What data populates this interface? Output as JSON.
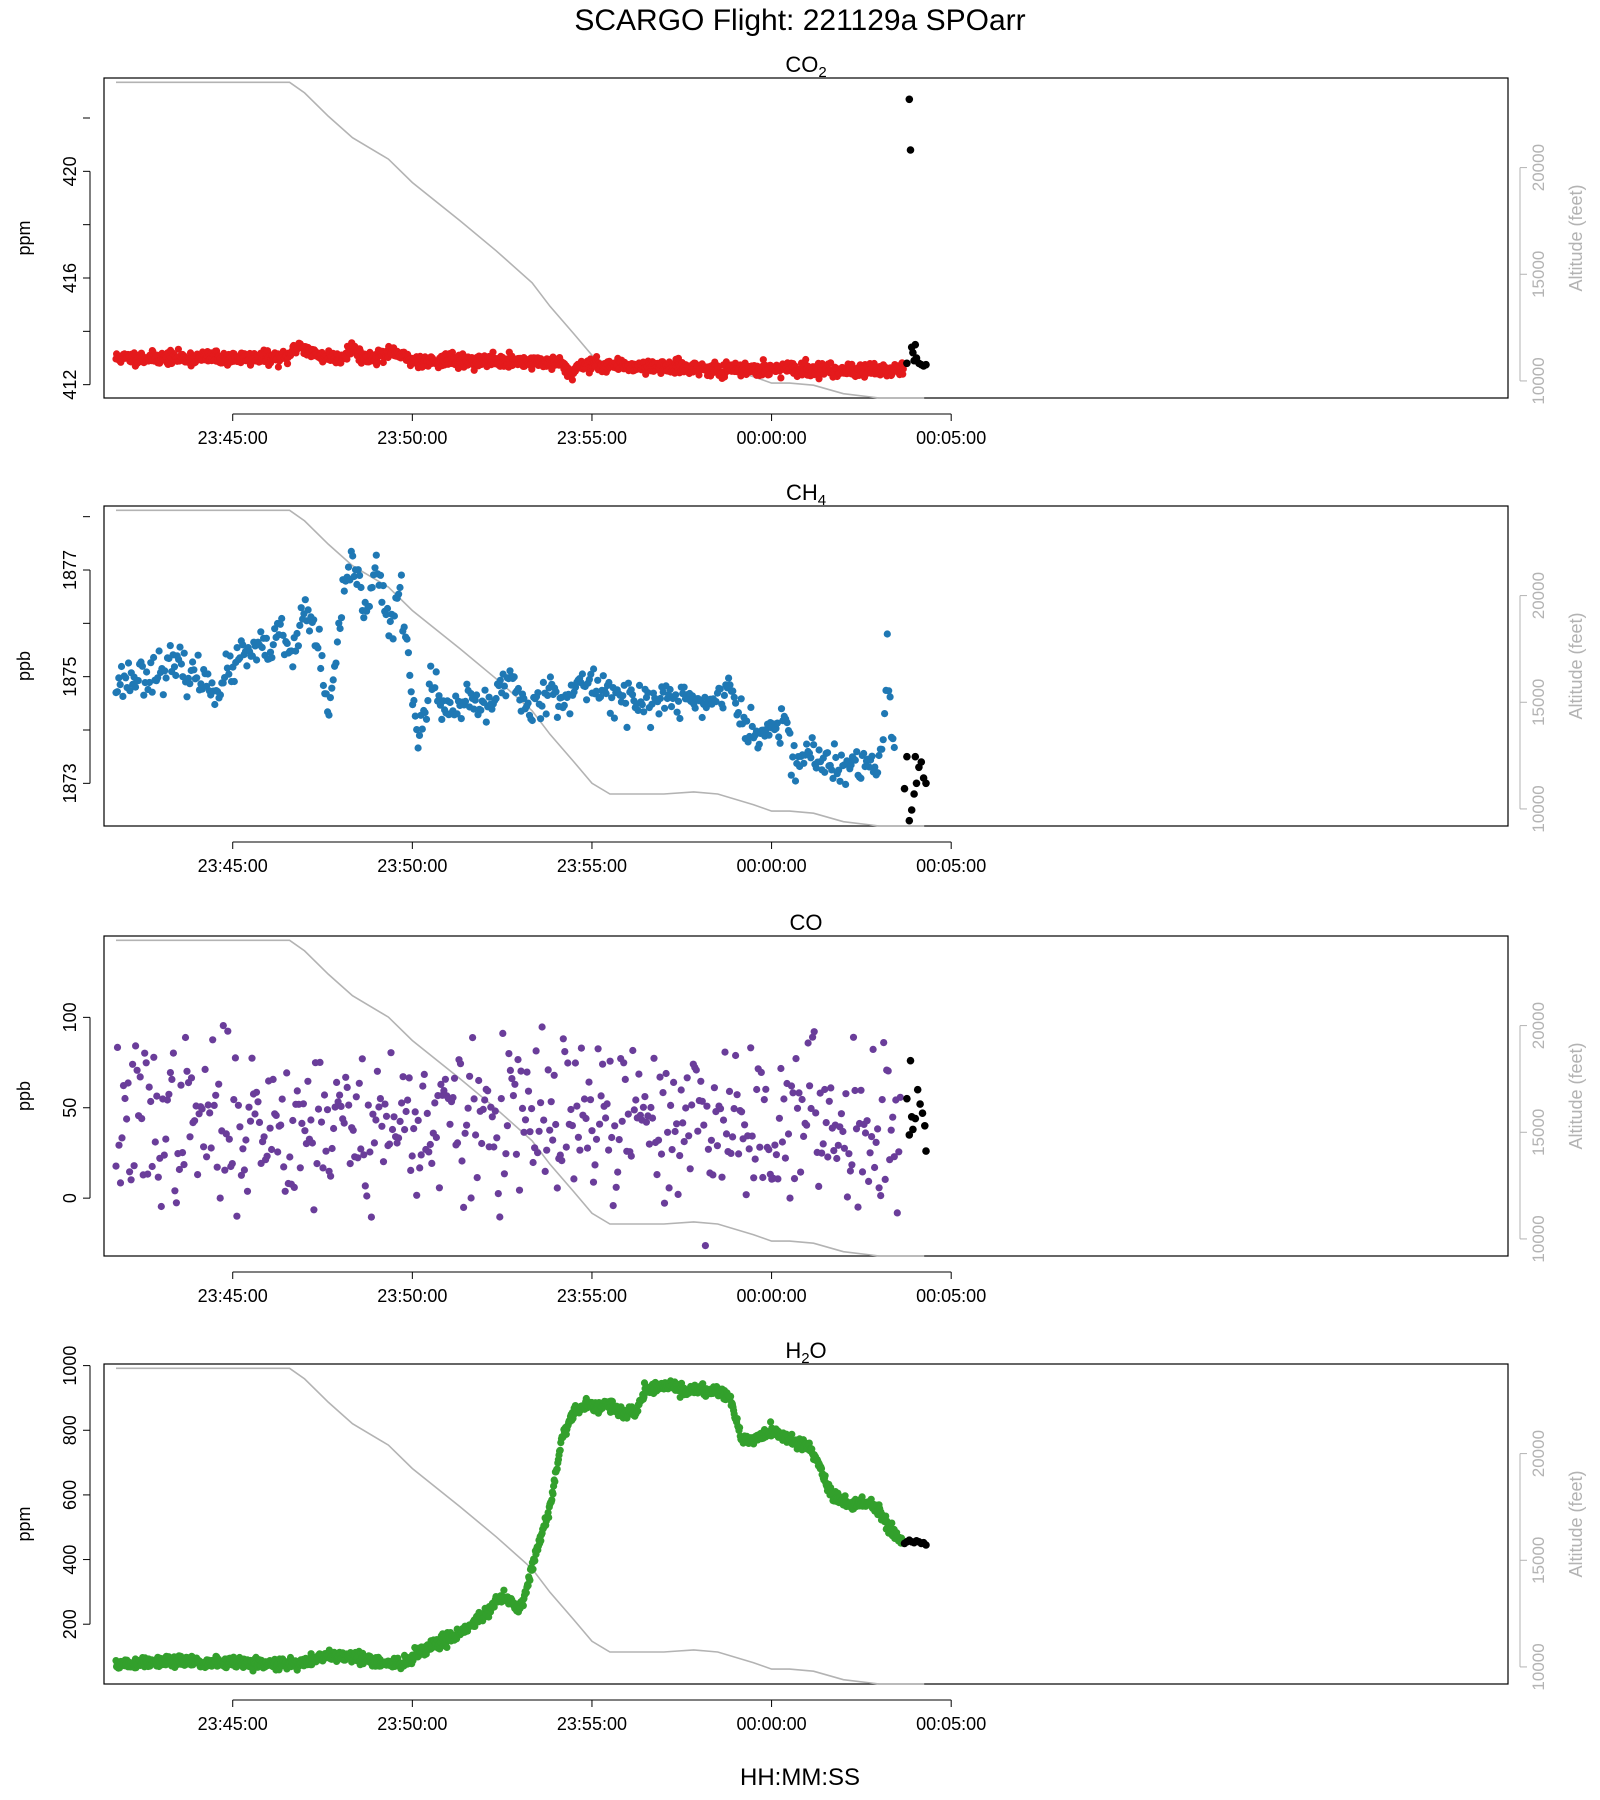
{
  "title": "SCARGO Flight: 221129a  SPOarr",
  "x_axis_title": "HH:MM:SS",
  "right_axis_label": "Altitude (feet)",
  "colors": {
    "co2": "#e41a1c",
    "ch4": "#1f78b4",
    "co": "#6a3d9a",
    "h2o": "#33a02c",
    "final_points": "#000000",
    "altitude": "#b3b3b3"
  },
  "chart_data": {
    "type": "scatter",
    "time_range_seconds": [
      -1115,
      1230
    ],
    "x_ticks": [
      {
        "label": "23:45:00",
        "t": -900
      },
      {
        "label": "23:50:00",
        "t": -600
      },
      {
        "label": "23:55:00",
        "t": -300
      },
      {
        "label": "00:00:00",
        "t": 0
      },
      {
        "label": "00:05:00",
        "t": 300
      }
    ],
    "altitude_profile": {
      "name": "Altitude (feet)",
      "t_start": -1095,
      "t_end": 255,
      "points": [
        [
          -1095,
          24000
        ],
        [
          -1000,
          24000
        ],
        [
          -805,
          24000
        ],
        [
          -780,
          23500
        ],
        [
          -740,
          22400
        ],
        [
          -700,
          21400
        ],
        [
          -640,
          20400
        ],
        [
          -600,
          19300
        ],
        [
          -520,
          17500
        ],
        [
          -460,
          16100
        ],
        [
          -400,
          14600
        ],
        [
          -370,
          13500
        ],
        [
          -330,
          12200
        ],
        [
          -300,
          11200
        ],
        [
          -270,
          10700
        ],
        [
          -180,
          10700
        ],
        [
          -130,
          10800
        ],
        [
          -90,
          10700
        ],
        [
          -30,
          10200
        ],
        [
          0,
          9900
        ],
        [
          30,
          9900
        ],
        [
          70,
          9800
        ],
        [
          120,
          9400
        ],
        [
          180,
          9200
        ],
        [
          255,
          9200
        ]
      ]
    },
    "plots": [
      {
        "name": "CO2",
        "title": "CO",
        "title_subscript": "2",
        "ylabel": "ppm",
        "ylim": [
          411.5,
          423.5
        ],
        "yticks": [
          412,
          416,
          420
        ],
        "yticks_minor": [
          414,
          418,
          422
        ],
        "y2lim": [
          9200,
          24200
        ],
        "y2ticks": [
          10000,
          15000,
          20000
        ],
        "series_color": "co2",
        "series": {
          "t_start": -1095,
          "t_end": 220,
          "knots": [
            [
              -1095,
              413.0
            ],
            [
              -900,
              413.0
            ],
            [
              -810,
              413.0
            ],
            [
              -790,
              413.5
            ],
            [
              -760,
              413.1
            ],
            [
              -720,
              413.0
            ],
            [
              -700,
              413.4
            ],
            [
              -680,
              413.0
            ],
            [
              -650,
              413.1
            ],
            [
              -630,
              413.2
            ],
            [
              -600,
              412.9
            ],
            [
              -500,
              412.9
            ],
            [
              -400,
              412.85
            ],
            [
              -350,
              412.8
            ],
            [
              -335,
              412.4
            ],
            [
              -320,
              412.75
            ],
            [
              -200,
              412.7
            ],
            [
              -100,
              412.6
            ],
            [
              -80,
              412.45
            ],
            [
              -60,
              412.6
            ],
            [
              0,
              412.6
            ],
            [
              100,
              412.55
            ],
            [
              220,
              412.55
            ]
          ],
          "noise": 0.12,
          "count": 1300,
          "seed": 11
        },
        "final_points": [
          [
            226,
            412.8
          ],
          [
            230,
            422.7
          ],
          [
            232,
            420.8
          ],
          [
            234,
            413.4
          ],
          [
            236,
            413.2
          ],
          [
            238,
            412.9
          ],
          [
            240,
            413.5
          ],
          [
            242,
            413.0
          ],
          [
            246,
            412.8
          ],
          [
            250,
            412.75
          ],
          [
            254,
            412.7
          ],
          [
            258,
            412.75
          ]
        ]
      },
      {
        "name": "CH4",
        "title": "CH",
        "title_subscript": "4",
        "ylabel": "ppb",
        "ylim": [
          1872.2,
          1878.2
        ],
        "yticks": [
          1873,
          1875,
          1877
        ],
        "yticks_minor": [
          1874,
          1876,
          1878
        ],
        "y2lim": [
          9200,
          24200
        ],
        "y2ticks": [
          10000,
          15000,
          20000
        ],
        "series_color": "ch4",
        "series": {
          "t_start": -1095,
          "t_end": 205,
          "knots": [
            [
              -1095,
              1874.9
            ],
            [
              -1000,
              1875.2
            ],
            [
              -920,
              1874.8
            ],
            [
              -900,
              1875.2
            ],
            [
              -880,
              1875.4
            ],
            [
              -840,
              1875.5
            ],
            [
              -820,
              1875.8
            ],
            [
              -800,
              1875.3
            ],
            [
              -780,
              1876.3
            ],
            [
              -760,
              1875.8
            ],
            [
              -740,
              1874.2
            ],
            [
              -720,
              1876.0
            ],
            [
              -700,
              1877.3
            ],
            [
              -680,
              1876.2
            ],
            [
              -660,
              1877.2
            ],
            [
              -640,
              1875.8
            ],
            [
              -620,
              1876.6
            ],
            [
              -600,
              1874.8
            ],
            [
              -590,
              1873.6
            ],
            [
              -570,
              1875.0
            ],
            [
              -550,
              1874.3
            ],
            [
              -500,
              1874.5
            ],
            [
              -470,
              1874.4
            ],
            [
              -440,
              1875.1
            ],
            [
              -420,
              1874.6
            ],
            [
              -400,
              1874.3
            ],
            [
              -380,
              1874.8
            ],
            [
              -340,
              1874.6
            ],
            [
              -300,
              1874.9
            ],
            [
              -250,
              1874.6
            ],
            [
              -200,
              1874.5
            ],
            [
              -160,
              1874.6
            ],
            [
              -100,
              1874.5
            ],
            [
              -70,
              1874.9
            ],
            [
              -60,
              1874.3
            ],
            [
              -40,
              1874.1
            ],
            [
              -20,
              1873.8
            ],
            [
              0,
              1874.1
            ],
            [
              20,
              1874.1
            ],
            [
              40,
              1873.4
            ],
            [
              60,
              1873.6
            ],
            [
              100,
              1873.3
            ],
            [
              150,
              1873.3
            ],
            [
              180,
              1873.4
            ],
            [
              190,
              1874.3
            ],
            [
              193,
              1876.0
            ],
            [
              195,
              1874.8
            ],
            [
              205,
              1873.5
            ]
          ],
          "noise": 0.18,
          "count": 560,
          "seed": 23
        },
        "final_points": [
          [
            222,
            1872.9
          ],
          [
            226,
            1873.5
          ],
          [
            230,
            1872.3
          ],
          [
            234,
            1872.5
          ],
          [
            238,
            1872.8
          ],
          [
            240,
            1873.5
          ],
          [
            242,
            1873.0
          ],
          [
            246,
            1873.3
          ],
          [
            250,
            1873.4
          ],
          [
            254,
            1873.1
          ],
          [
            258,
            1873.0
          ]
        ]
      },
      {
        "name": "CO",
        "title": "CO",
        "title_subscript": "",
        "ylabel": "ppb",
        "ylim": [
          -32,
          145
        ],
        "yticks": [
          0,
          50,
          100
        ],
        "yticks_minor": [],
        "y2lim": [
          9200,
          24200
        ],
        "y2ticks": [
          10000,
          15000,
          20000
        ],
        "series_color": "co",
        "series": {
          "t_start": -1095,
          "t_end": 215,
          "knots": [
            [
              -1095,
              42
            ],
            [
              215,
              42
            ]
          ],
          "noise": 22,
          "count": 520,
          "seed": 37
        },
        "final_points": [
          [
            226,
            55
          ],
          [
            230,
            35
          ],
          [
            232,
            76
          ],
          [
            234,
            45
          ],
          [
            236,
            38
          ],
          [
            240,
            44
          ],
          [
            244,
            60
          ],
          [
            248,
            52
          ],
          [
            252,
            47
          ],
          [
            256,
            40
          ],
          [
            258,
            26
          ]
        ]
      },
      {
        "name": "H2O",
        "title": "H",
        "title_subscript": "2",
        "title_suffix": "O",
        "ylabel": "ppm",
        "ylim": [
          15,
          1005
        ],
        "yticks": [
          200,
          400,
          600,
          800,
          1000
        ],
        "yticks_minor": [],
        "y2lim": [
          9200,
          24200
        ],
        "y2ticks": [
          10000,
          15000,
          20000
        ],
        "series_color": "h2o",
        "series": {
          "t_start": -1095,
          "t_end": 220,
          "knots": [
            [
              -1095,
              75
            ],
            [
              -1000,
              85
            ],
            [
              -900,
              80
            ],
            [
              -800,
              75
            ],
            [
              -760,
              95
            ],
            [
              -700,
              105
            ],
            [
              -660,
              80
            ],
            [
              -620,
              75
            ],
            [
              -600,
              100
            ],
            [
              -560,
              140
            ],
            [
              -520,
              175
            ],
            [
              -480,
              230
            ],
            [
              -460,
              270
            ],
            [
              -450,
              285
            ],
            [
              -430,
              260
            ],
            [
              -420,
              240
            ],
            [
              -400,
              380
            ],
            [
              -370,
              560
            ],
            [
              -350,
              780
            ],
            [
              -330,
              860
            ],
            [
              -310,
              880
            ],
            [
              -290,
              870
            ],
            [
              -270,
              880
            ],
            [
              -250,
              850
            ],
            [
              -230,
              850
            ],
            [
              -210,
              920
            ],
            [
              -190,
              940
            ],
            [
              -170,
              940
            ],
            [
              -150,
              920
            ],
            [
              -130,
              930
            ],
            [
              -110,
              920
            ],
            [
              -90,
              930
            ],
            [
              -70,
              900
            ],
            [
              -50,
              770
            ],
            [
              -30,
              770
            ],
            [
              0,
              800
            ],
            [
              20,
              780
            ],
            [
              40,
              760
            ],
            [
              60,
              760
            ],
            [
              80,
              690
            ],
            [
              100,
              600
            ],
            [
              130,
              570
            ],
            [
              160,
              575
            ],
            [
              180,
              550
            ],
            [
              200,
              490
            ],
            [
              220,
              455
            ]
          ],
          "noise": 9,
          "count": 1300,
          "seed": 51
        },
        "final_points": [
          [
            222,
            450
          ],
          [
            226,
            455
          ],
          [
            230,
            460
          ],
          [
            234,
            455
          ],
          [
            238,
            452
          ],
          [
            242,
            458
          ],
          [
            246,
            455
          ],
          [
            250,
            450
          ],
          [
            254,
            452
          ],
          [
            258,
            445
          ]
        ]
      }
    ]
  }
}
